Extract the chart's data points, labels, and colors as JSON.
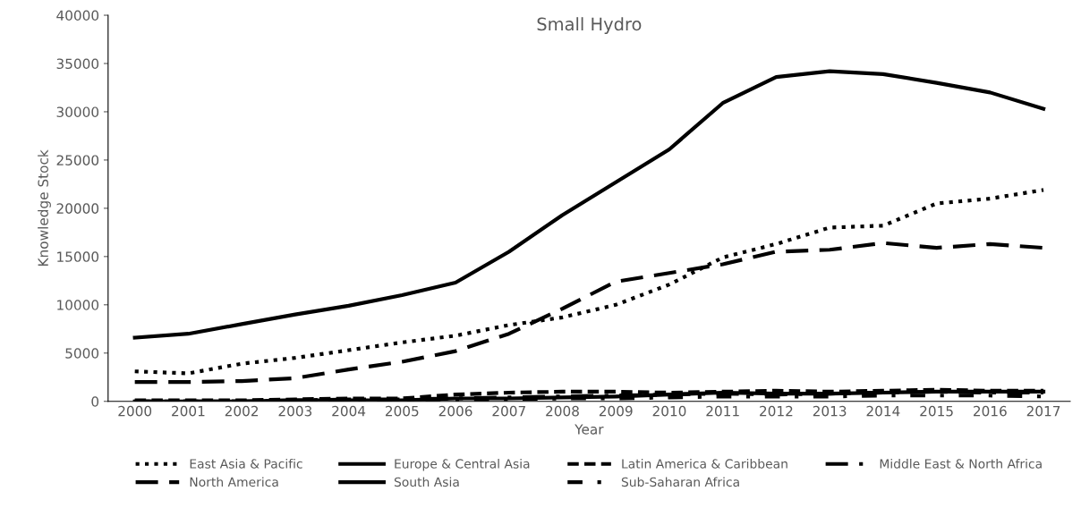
{
  "chart_data": {
    "type": "line",
    "title": "Small Hydro",
    "xlabel": "Year",
    "ylabel": "Knowledge Stock",
    "categories": [
      "2000",
      "2001",
      "2002",
      "2003",
      "2004",
      "2005",
      "2006",
      "2007",
      "2008",
      "2009",
      "2010",
      "2011",
      "2012",
      "2013",
      "2014",
      "2015",
      "2016",
      "2017"
    ],
    "ylim": [
      0,
      40000
    ],
    "yticks": [
      0,
      5000,
      10000,
      15000,
      20000,
      25000,
      30000,
      35000,
      40000
    ],
    "grid": false,
    "legend": "bottom",
    "marker": "none",
    "series": [
      {
        "name": "East Asia & Pacific",
        "color": "#000000",
        "line_style": "dotted",
        "values": [
          3100,
          2900,
          3900,
          4500,
          5300,
          6100,
          6800,
          7900,
          8700,
          10000,
          12100,
          14900,
          16300,
          18000,
          18200,
          20500,
          21000,
          21900
        ]
      },
      {
        "name": "Europe & Central Asia",
        "color": "#000000",
        "line_style": "solid",
        "values": [
          6600,
          7000,
          8000,
          9000,
          9900,
          11000,
          12300,
          15500,
          19300,
          22700,
          26100,
          30900,
          33600,
          34200,
          33900,
          33000,
          32000,
          30300
        ]
      },
      {
        "name": "Latin America & Caribbean",
        "color": "#000000",
        "line_style": "dashed",
        "values": [
          100,
          100,
          100,
          200,
          300,
          300,
          700,
          900,
          1000,
          1000,
          900,
          1000,
          1100,
          1000,
          1100,
          1200,
          1100,
          1100
        ]
      },
      {
        "name": "Middle East & North Africa",
        "color": "#000000",
        "line_style": "dashdot",
        "values": [
          0,
          0,
          0,
          100,
          200,
          200,
          300,
          400,
          500,
          600,
          700,
          800,
          700,
          800,
          900,
          1000,
          900,
          900
        ]
      },
      {
        "name": "North America",
        "color": "#000000",
        "line_style": "longdash",
        "values": [
          2000,
          2000,
          2100,
          2400,
          3300,
          4100,
          5200,
          7000,
          9600,
          12400,
          13300,
          14200,
          15500,
          15700,
          16400,
          15900,
          16300,
          15900
        ]
      },
      {
        "name": "South Asia",
        "color": "#000000",
        "line_style": "solid",
        "values": [
          0,
          0,
          0,
          100,
          100,
          100,
          300,
          300,
          400,
          500,
          700,
          900,
          800,
          800,
          900,
          1000,
          1000,
          1000
        ]
      },
      {
        "name": "Sub-Saharan Africa",
        "color": "#000000",
        "line_style": "dashdot2",
        "values": [
          0,
          0,
          0,
          0,
          100,
          100,
          100,
          200,
          300,
          300,
          400,
          500,
          500,
          500,
          600,
          600,
          600,
          500
        ]
      }
    ]
  }
}
